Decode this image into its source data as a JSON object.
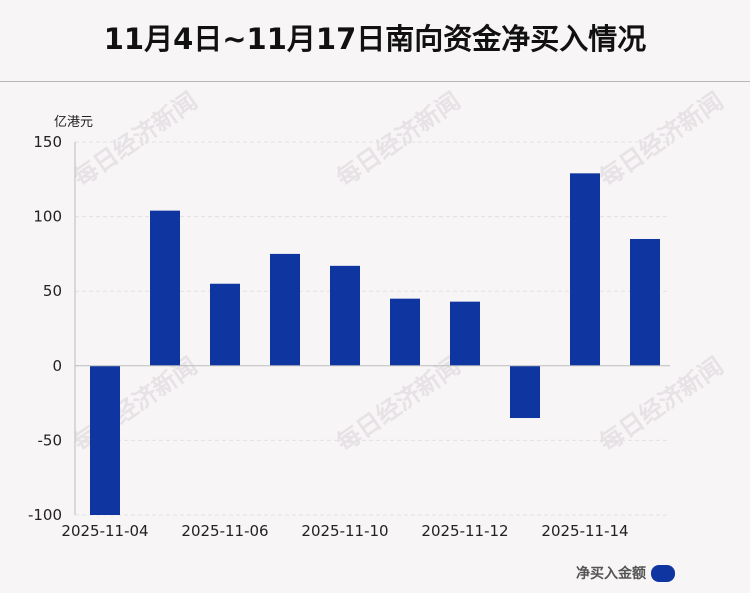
{
  "title": "11月4日~11月17日南向资金净买入情况",
  "unit_label": "亿港元",
  "legend": {
    "label": "净买入金额",
    "color": "#0f35a0"
  },
  "watermark_text": "每日经济新闻",
  "colors": {
    "bar": "#0f35a0",
    "grid": "#e2e2e2",
    "axis": "#bdbdbd",
    "background": "#f8f5f7"
  },
  "chart_data": {
    "type": "bar",
    "title": "11月4日~11月17日南向资金净买入情况",
    "ylabel": "亿港元",
    "xlabel": "",
    "ylim": [
      -100,
      150
    ],
    "yticks": [
      150,
      100,
      50,
      0,
      -50,
      -100
    ],
    "grid": true,
    "legend_position": "bottom-right",
    "categories": [
      "2025-11-04",
      "2025-11-05",
      "2025-11-06",
      "2025-11-07",
      "2025-11-10",
      "2025-11-11",
      "2025-11-12",
      "2025-11-13",
      "2025-11-14",
      "2025-11-17"
    ],
    "x_tick_labels": [
      "2025-11-04",
      "",
      "2025-11-06",
      "",
      "2025-11-10",
      "",
      "2025-11-12",
      "",
      "2025-11-14",
      ""
    ],
    "series": [
      {
        "name": "净买入金额",
        "values": [
          -100,
          104,
          55,
          75,
          67,
          45,
          43,
          -35,
          129,
          85
        ]
      }
    ]
  }
}
